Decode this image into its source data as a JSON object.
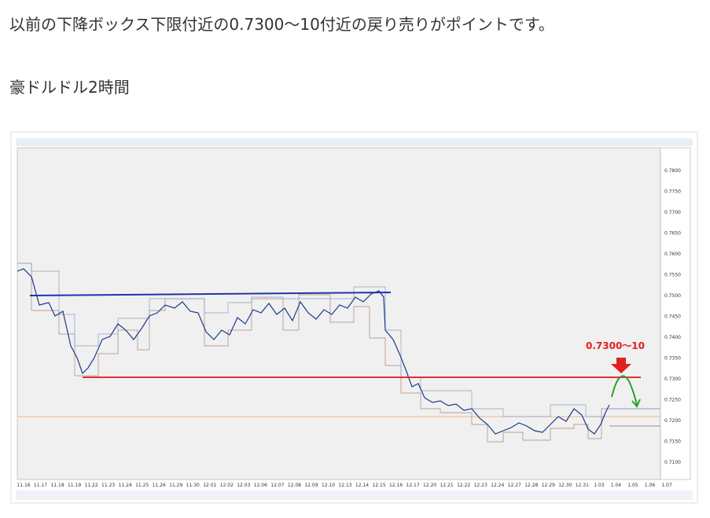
{
  "post": {
    "lead": "以前の下降ボックス下限付近の0.7300〜10付近の戻り売りがポイントです。",
    "caption": "豪ドルドル2時間"
  },
  "chart": {
    "annotation": "0.7300〜10",
    "x_labels": [
      "11.16",
      "11.17",
      "11.18",
      "11.19",
      "11.22",
      "11.23",
      "11.24",
      "11.25",
      "11.26",
      "11.29",
      "11.30",
      "12.01",
      "12.02",
      "12.03",
      "12.06",
      "12.07",
      "12.08",
      "12.09",
      "12.10",
      "12.13",
      "12.14",
      "12.15",
      "12.16",
      "12.17",
      "12.20",
      "12.21",
      "12.22",
      "12.23",
      "12.24",
      "12.27",
      "12.28",
      "12.29",
      "12.30",
      "12.31",
      "1.03",
      "1.04",
      "1.05",
      "1.06",
      "1.07"
    ],
    "y_labels": [
      "0.7800",
      "0.7750",
      "0.7700",
      "0.7650",
      "0.7600",
      "0.7550",
      "0.7500",
      "0.7450",
      "0.7400",
      "0.7350",
      "0.7300",
      "0.7250",
      "0.7200",
      "0.7150",
      "0.7100"
    ]
  }
}
